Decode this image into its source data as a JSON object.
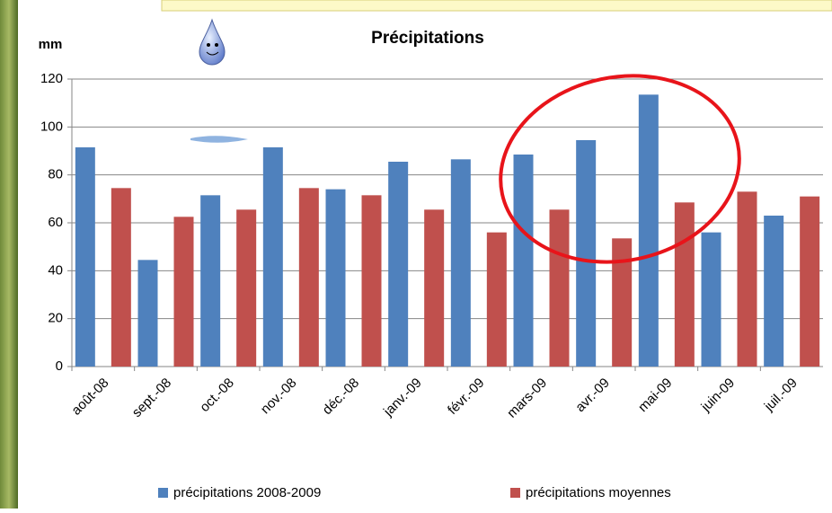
{
  "chart_data": {
    "type": "bar",
    "title": "Précipitations",
    "y_label": "mm",
    "categories": [
      "août-08",
      "sept.-08",
      "oct.-08",
      "nov.-08",
      "déc.-08",
      "janv.-09",
      "févr.-09",
      "mars-09",
      "avr.-09",
      "mai-09",
      "juin-09",
      "juil.-09"
    ],
    "series": [
      {
        "name": "précipitations 2008-2009",
        "color": "#4f81bd",
        "values": [
          91.5,
          44.5,
          71.5,
          91.5,
          74,
          85.5,
          86.5,
          88.5,
          94.5,
          113.5,
          56,
          63
        ]
      },
      {
        "name": "précipitations moyennes",
        "color": "#c0504d",
        "values": [
          74.5,
          62.5,
          65.5,
          74.5,
          71.5,
          65.5,
          56,
          65.5,
          53.5,
          68.5,
          73,
          71
        ]
      }
    ],
    "ylim": [
      0,
      120
    ],
    "yticks": [
      0,
      20,
      40,
      60,
      80,
      100,
      120
    ],
    "grid": true,
    "legend": "bottom"
  }
}
